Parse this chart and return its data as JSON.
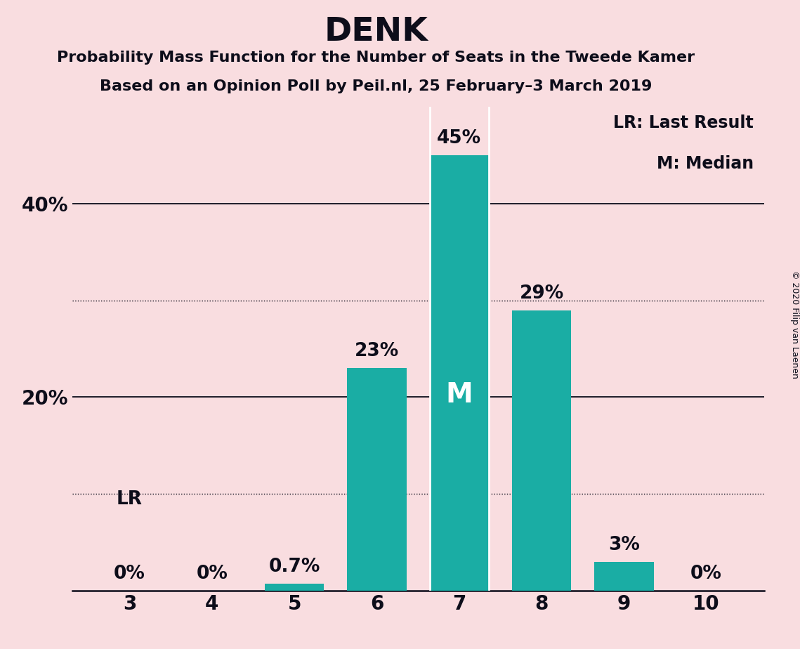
{
  "title": "DENK",
  "subtitle1": "Probability Mass Function for the Number of Seats in the Tweede Kamer",
  "subtitle2": "Based on an Opinion Poll by Peil.nl, 25 February–3 March 2019",
  "copyright": "© 2020 Filip van Laenen",
  "categories": [
    3,
    4,
    5,
    6,
    7,
    8,
    9,
    10
  ],
  "values": [
    0.0,
    0.0,
    0.7,
    23.0,
    45.0,
    29.0,
    3.0,
    0.0
  ],
  "bar_color": "#1AADA4",
  "bg_color": "#F9DDE0",
  "text_color": "#0d0d1a",
  "median_seat": 7,
  "lr_seat": 3,
  "ylim": [
    0,
    50
  ],
  "dotted_lines": [
    10,
    30
  ],
  "solid_lines": [
    20,
    40
  ],
  "legend_lr": "LR: Last Result",
  "legend_m": "M: Median",
  "bar_width": 0.72,
  "title_fontsize": 34,
  "subtitle_fontsize": 16,
  "tick_fontsize": 20,
  "label_fontsize": 19,
  "legend_fontsize": 17,
  "copyright_fontsize": 9,
  "m_fontsize": 28
}
